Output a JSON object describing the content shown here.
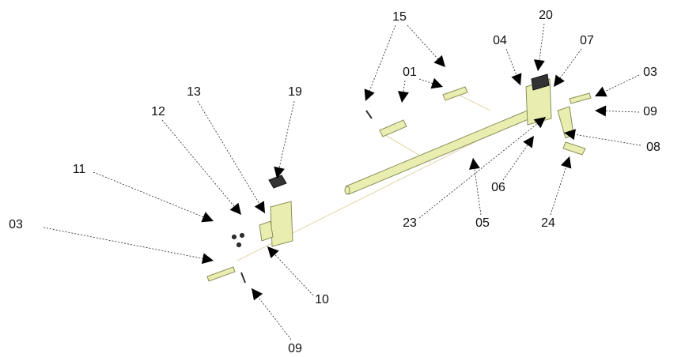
{
  "callouts": [
    {
      "label": "15"
    },
    {
      "label": "20"
    },
    {
      "label": "04"
    },
    {
      "label": "07"
    },
    {
      "label": "03"
    },
    {
      "label": "01"
    },
    {
      "label": "09"
    },
    {
      "label": "08"
    },
    {
      "label": "13"
    },
    {
      "label": "19"
    },
    {
      "label": "12"
    },
    {
      "label": "11"
    },
    {
      "label": "03"
    },
    {
      "label": "06"
    },
    {
      "label": "23"
    },
    {
      "label": "05"
    },
    {
      "label": "24"
    },
    {
      "label": "10"
    },
    {
      "label": "09"
    }
  ]
}
